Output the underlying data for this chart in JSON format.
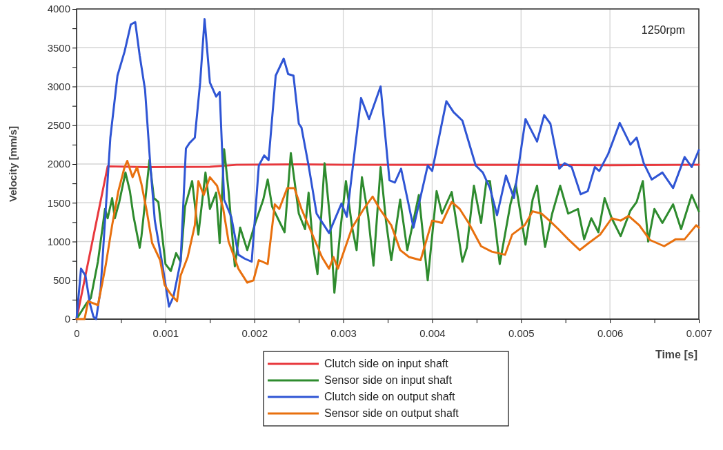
{
  "chart_data": {
    "type": "line",
    "xlabel": "Time [s]",
    "ylabel": "Velocity [mm/s]",
    "annotations": [
      "1250rpm"
    ],
    "xlim": [
      0,
      0.007
    ],
    "ylim": [
      0,
      4000
    ],
    "xticks": [
      0,
      {
        "value": 0.0005,
        "label": null
      },
      0.001,
      {
        "value": 0.0015,
        "label": null
      },
      0.002,
      {
        "value": 0.0025,
        "label": null
      },
      0.003,
      {
        "value": 0.0035,
        "label": null
      },
      0.004,
      {
        "value": 0.0045,
        "label": null
      },
      0.005,
      {
        "value": 0.0055,
        "label": null
      },
      0.006,
      {
        "value": 0.0065,
        "label": null
      },
      0.007
    ],
    "yticks": [
      0,
      {
        "value": 250,
        "label": null
      },
      500,
      {
        "value": 750,
        "label": null
      },
      1000,
      {
        "value": 1250,
        "label": null
      },
      1500,
      {
        "value": 1750,
        "label": null
      },
      2000,
      {
        "value": 2250,
        "label": null
      },
      2500,
      {
        "value": 2750,
        "label": null
      },
      3000,
      {
        "value": 3250,
        "label": null
      },
      3500,
      {
        "value": 3750,
        "label": null
      },
      4000
    ],
    "grid": true,
    "legend": "bottom",
    "marker": "none",
    "line_style": "solid",
    "series": [
      {
        "name": "Clutch side on input shaft",
        "color": "#e8383d",
        "x": [
          0,
          0.00035,
          0.0008,
          0.0015,
          0.0018,
          0.0025,
          0.003,
          0.004,
          0.005,
          0.006,
          0.007
        ],
        "values": [
          0,
          1970,
          1960,
          1965,
          1990,
          1995,
          1990,
          1990,
          1990,
          1985,
          1990
        ]
      },
      {
        "name": "Sensor side on input shaft",
        "color": "#2e8b2e",
        "x": [
          0,
          0.00011,
          0.00016,
          0.00024,
          0.00032,
          0.00035,
          0.0004,
          0.00043,
          0.00048,
          0.00055,
          0.0006,
          0.00064,
          0.00071,
          0.00073,
          0.00082,
          0.00087,
          0.00092,
          0.001,
          0.00106,
          0.00112,
          0.00117,
          0.00122,
          0.0013,
          0.00137,
          0.00145,
          0.0015,
          0.00157,
          0.00161,
          0.00166,
          0.00171,
          0.00178,
          0.00184,
          0.00192,
          0.00201,
          0.0021,
          0.00215,
          0.0022,
          0.00234,
          0.00241,
          0.0025,
          0.00257,
          0.00261,
          0.00266,
          0.00271,
          0.00279,
          0.00285,
          0.0029,
          0.00297,
          0.00303,
          0.0031,
          0.00315,
          0.00321,
          0.00328,
          0.00334,
          0.00342,
          0.00348,
          0.00354,
          0.00364,
          0.00372,
          0.00385,
          0.00395,
          0.00405,
          0.00411,
          0.00422,
          0.00434,
          0.00439,
          0.00447,
          0.00455,
          0.00461,
          0.00465,
          0.00476,
          0.00488,
          0.00494,
          0.00505,
          0.00513,
          0.00518,
          0.00527,
          0.00535,
          0.00544,
          0.00553,
          0.00564,
          0.00571,
          0.00579,
          0.00587,
          0.00594,
          0.00602,
          0.00612,
          0.00623,
          0.0063,
          0.00637,
          0.00643,
          0.0065,
          0.00659,
          0.00671,
          0.0068,
          0.00692,
          0.007
        ],
        "values": [
          0,
          200,
          270,
          740,
          1420,
          1300,
          1560,
          1300,
          1510,
          1890,
          1650,
          1330,
          920,
          1070,
          2050,
          1560,
          1510,
          710,
          620,
          850,
          740,
          1450,
          1780,
          1090,
          1890,
          1420,
          1630,
          980,
          2190,
          1650,
          680,
          1180,
          890,
          1240,
          1540,
          1800,
          1450,
          1120,
          2140,
          1360,
          1160,
          1630,
          940,
          580,
          2010,
          1300,
          340,
          1180,
          1780,
          1180,
          890,
          1830,
          1330,
          690,
          1960,
          1270,
          760,
          1540,
          890,
          1600,
          500,
          1650,
          1360,
          1640,
          740,
          920,
          1720,
          1240,
          1780,
          1780,
          710,
          1480,
          1740,
          960,
          1540,
          1720,
          930,
          1360,
          1720,
          1360,
          1420,
          1030,
          1300,
          1120,
          1560,
          1300,
          1070,
          1400,
          1510,
          1780,
          1000,
          1420,
          1240,
          1480,
          1160,
          1600,
          1390
        ]
      },
      {
        "name": "Clutch side on output shaft",
        "color": "#2f55d4",
        "x": [
          0,
          5e-05,
          0.0001,
          0.00015,
          0.00019,
          0.00022,
          0.00027,
          0.00038,
          0.00046,
          0.00054,
          0.00061,
          0.00066,
          0.00071,
          0.00077,
          0.00083,
          0.00088,
          0.00096,
          0.00104,
          0.00109,
          0.00117,
          0.00123,
          0.00127,
          0.00133,
          0.00139,
          0.00144,
          0.0015,
          0.00157,
          0.00161,
          0.00166,
          0.00174,
          0.00182,
          0.00189,
          0.00197,
          0.00205,
          0.00211,
          0.00216,
          0.00224,
          0.00233,
          0.00238,
          0.00244,
          0.0025,
          0.00253,
          0.00261,
          0.0027,
          0.00284,
          0.00298,
          0.00304,
          0.0032,
          0.00329,
          0.00342,
          0.00352,
          0.00358,
          0.00365,
          0.00379,
          0.00395,
          0.004,
          0.00416,
          0.00424,
          0.00434,
          0.00449,
          0.00457,
          0.00465,
          0.00473,
          0.00483,
          0.00492,
          0.00505,
          0.00518,
          0.00526,
          0.00533,
          0.00543,
          0.00549,
          0.00557,
          0.00567,
          0.00575,
          0.00583,
          0.00588,
          0.00598,
          0.00611,
          0.00623,
          0.0063,
          0.00638,
          0.00647,
          0.00659,
          0.00671,
          0.00684,
          0.00692,
          0.007
        ],
        "values": [
          0,
          650,
          560,
          200,
          30,
          0,
          380,
          2340,
          3140,
          3450,
          3800,
          3830,
          3400,
          2960,
          1980,
          1270,
          740,
          160,
          290,
          740,
          2200,
          2270,
          2340,
          3050,
          3870,
          3050,
          2870,
          2930,
          1540,
          1320,
          830,
          780,
          740,
          1980,
          2110,
          2050,
          3140,
          3360,
          3160,
          3140,
          2520,
          2470,
          1980,
          1360,
          1110,
          1490,
          1320,
          2850,
          2580,
          3000,
          1790,
          1760,
          1940,
          1180,
          1980,
          1910,
          2810,
          2670,
          2560,
          1980,
          1890,
          1690,
          1340,
          1850,
          1560,
          2580,
          2290,
          2630,
          2520,
          1940,
          2010,
          1960,
          1610,
          1650,
          1960,
          1910,
          2130,
          2530,
          2250,
          2340,
          2010,
          1800,
          1890,
          1690,
          2090,
          1960,
          2180
        ]
      },
      {
        "name": "Sensor side on output shaft",
        "color": "#e8700e",
        "x": [
          0,
          9e-05,
          0.00013,
          0.00024,
          0.00029,
          0.00033,
          0.0004,
          0.00047,
          0.00054,
          0.00057,
          0.00063,
          0.00068,
          0.00073,
          0.00079,
          0.00085,
          0.00094,
          0.00099,
          0.00106,
          0.00113,
          0.00117,
          0.00125,
          0.00133,
          0.00137,
          0.00143,
          0.0015,
          0.00158,
          0.00165,
          0.00171,
          0.00182,
          0.00192,
          0.00199,
          0.00205,
          0.00215,
          0.00223,
          0.00228,
          0.00237,
          0.00245,
          0.00253,
          0.00266,
          0.00276,
          0.00284,
          0.00289,
          0.00294,
          0.0031,
          0.00323,
          0.00333,
          0.00341,
          0.00354,
          0.00364,
          0.00374,
          0.00387,
          0.004,
          0.00411,
          0.00422,
          0.00431,
          0.00441,
          0.00455,
          0.00467,
          0.00482,
          0.0049,
          0.00504,
          0.00513,
          0.00523,
          0.00532,
          0.00542,
          0.00553,
          0.00566,
          0.00576,
          0.00589,
          0.00602,
          0.00612,
          0.00621,
          0.00633,
          0.00645,
          0.00661,
          0.00674,
          0.00684,
          0.00697,
          0.007
        ],
        "values": [
          0,
          0,
          230,
          180,
          470,
          710,
          1210,
          1650,
          1960,
          2040,
          1830,
          1960,
          1740,
          1390,
          980,
          760,
          440,
          320,
          230,
          560,
          800,
          1210,
          1780,
          1600,
          1830,
          1720,
          1420,
          1000,
          650,
          470,
          500,
          760,
          710,
          1480,
          1420,
          1690,
          1690,
          1420,
          1070,
          800,
          650,
          800,
          650,
          1180,
          1420,
          1580,
          1420,
          1210,
          890,
          800,
          760,
          1270,
          1240,
          1510,
          1420,
          1240,
          940,
          870,
          830,
          1090,
          1210,
          1390,
          1360,
          1270,
          1160,
          1030,
          890,
          980,
          1090,
          1300,
          1270,
          1330,
          1210,
          1020,
          940,
          1030,
          1030,
          1210,
          1180
        ]
      }
    ]
  }
}
